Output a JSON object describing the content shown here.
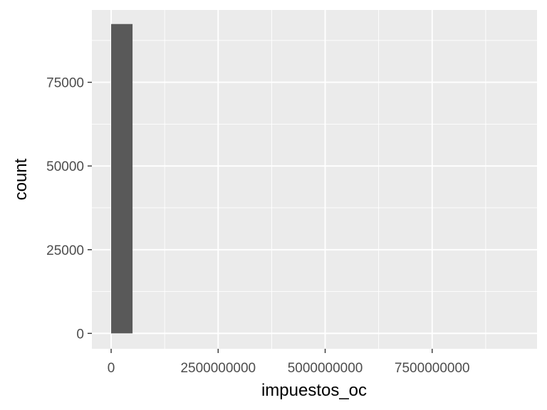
{
  "chart_data": {
    "type": "histogram",
    "title": "",
    "xlabel": "impuestos_oc",
    "ylabel": "count",
    "xlim": [
      -450000000,
      9950000000
    ],
    "ylim": [
      -4600,
      96600
    ],
    "x_ticks": [
      0,
      2500000000,
      5000000000,
      7500000000
    ],
    "x_tick_labels": [
      "0",
      "2500000000",
      "5000000000",
      "7500000000"
    ],
    "y_ticks": [
      0,
      25000,
      50000,
      75000
    ],
    "y_tick_labels": [
      "0",
      "25000",
      "50000",
      "75000"
    ],
    "bins": [
      {
        "x0": 0,
        "x1": 500000000,
        "count": 92400
      }
    ],
    "grid": true,
    "legend": "none",
    "colors": {
      "panel_background": "#ebebeb",
      "grid_major": "#ffffff",
      "bar_fill": "#595959",
      "tick_text": "#4d4d4d",
      "tick_mark": "#333333",
      "title_text": "#000000"
    }
  }
}
